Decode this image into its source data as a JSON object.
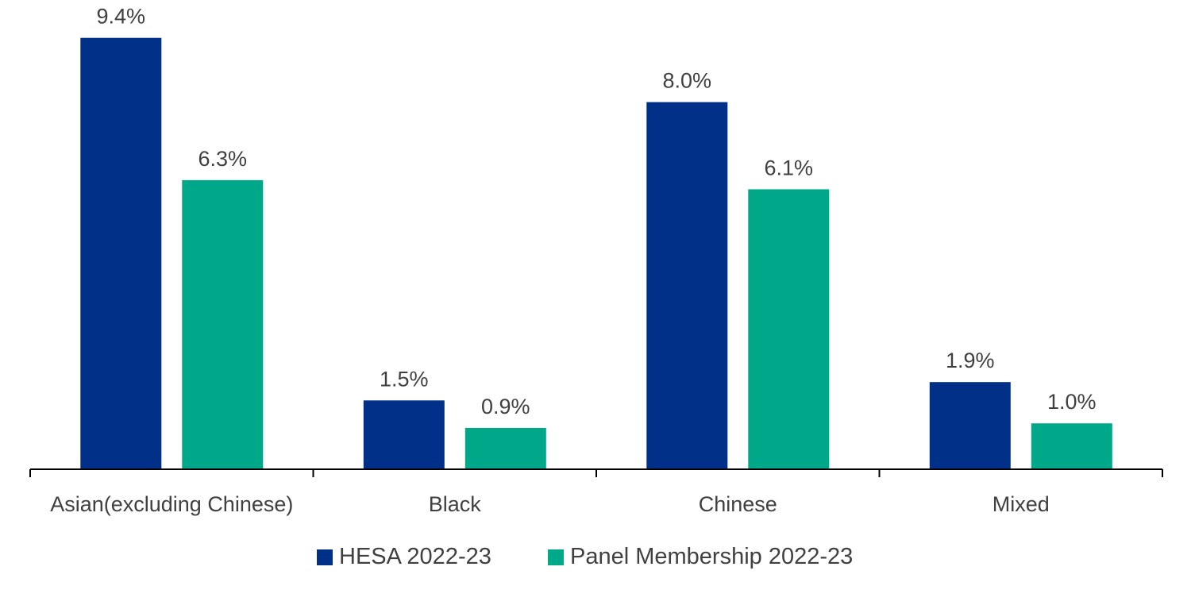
{
  "chart_data": {
    "type": "bar",
    "categories": [
      "Asian(excluding Chinese)",
      "Black",
      "Chinese",
      "Mixed"
    ],
    "series": [
      {
        "name": "HESA 2022-23",
        "values": [
          9.4,
          1.5,
          8.0,
          1.9
        ],
        "labels": [
          "9.4%",
          "1.5%",
          "8.0%",
          "1.9%"
        ],
        "color": "#003087"
      },
      {
        "name": "Panel Membership 2022-23",
        "values": [
          6.3,
          0.9,
          6.1,
          1.0
        ],
        "labels": [
          "6.3%",
          "0.9%",
          "6.1%",
          "1.0%"
        ],
        "color": "#00A88A"
      }
    ],
    "ylim": [
      0,
      10
    ],
    "grid": false,
    "legend_position": "bottom",
    "text_color": "#404040",
    "axis_color": "#000000"
  }
}
